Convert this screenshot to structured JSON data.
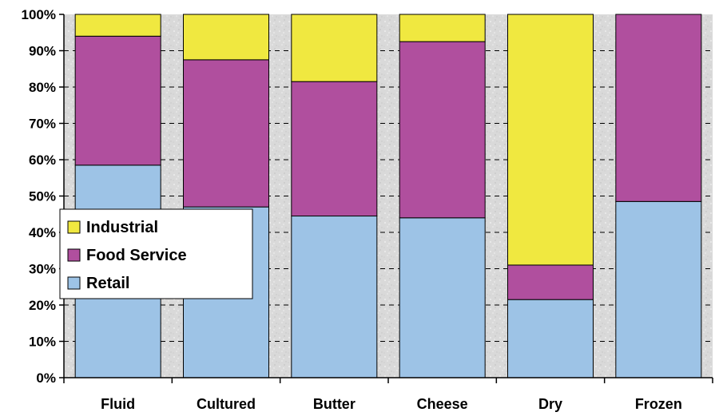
{
  "chart_data": {
    "type": "bar",
    "stacked": true,
    "normalized": true,
    "title": "",
    "xlabel": "",
    "ylabel": "",
    "categories": [
      "Fluid",
      "Cultured",
      "Butter",
      "Cheese",
      "Dry",
      "Frozen"
    ],
    "series": [
      {
        "name": "Retail",
        "color": "#9dc3e6",
        "values": [
          58.5,
          47,
          44.5,
          44,
          21.5,
          48.5
        ]
      },
      {
        "name": "Food Service",
        "color": "#b04f9e",
        "values": [
          35.5,
          40.5,
          37,
          48.5,
          9.5,
          51.5
        ]
      },
      {
        "name": "Industrial",
        "color": "#f0e840",
        "values": [
          6,
          12.5,
          18.5,
          7.5,
          69,
          0
        ]
      }
    ],
    "ylim": [
      0,
      100
    ],
    "y_ticks": [
      "0%",
      "10%",
      "20%",
      "30%",
      "40%",
      "50%",
      "60%",
      "70%",
      "80%",
      "90%",
      "100%"
    ],
    "legend": {
      "placement": "left",
      "entries": [
        "Industrial",
        "Food Service",
        "Retail"
      ]
    },
    "grid": {
      "y": true,
      "style": "dashed"
    },
    "background": "speckled-gray"
  }
}
